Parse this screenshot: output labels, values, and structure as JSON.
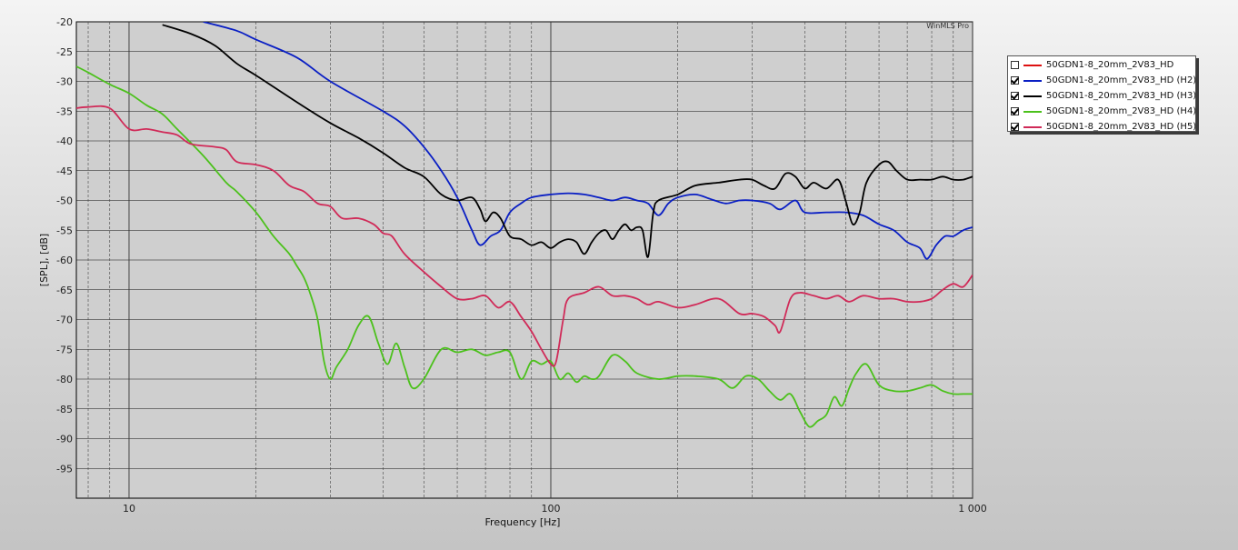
{
  "chart_data": {
    "type": "line",
    "xlabel": "Frequency [Hz]",
    "ylabel": "[SPL], [dB]",
    "x_scale": "log",
    "xlim": [
      7.5,
      1000
    ],
    "ylim": [
      -100,
      -20
    ],
    "grid": true,
    "legend_position": "right",
    "watermark": "WinMLS Pro",
    "y_ticks": [
      {
        "value": -20,
        "label": "-20"
      },
      {
        "value": -25,
        "label": "-25"
      },
      {
        "value": -30,
        "label": "-30"
      },
      {
        "value": -35,
        "label": "-35"
      },
      {
        "value": -40,
        "label": "-40"
      },
      {
        "value": -45,
        "label": "-45"
      },
      {
        "value": -50,
        "label": "-50"
      },
      {
        "value": -55,
        "label": "-55"
      },
      {
        "value": -60,
        "label": "-60"
      },
      {
        "value": -65,
        "label": "-65"
      },
      {
        "value": -70,
        "label": "-70"
      },
      {
        "value": -75,
        "label": "-75"
      },
      {
        "value": -80,
        "label": "-80"
      },
      {
        "value": -85,
        "label": "-85"
      },
      {
        "value": -90,
        "label": "-90"
      },
      {
        "value": -95,
        "label": "-95"
      }
    ],
    "x_ticks": [
      {
        "value": 10,
        "label": "10"
      },
      {
        "value": 100,
        "label": "100"
      },
      {
        "value": 1000,
        "label": "1 000"
      }
    ],
    "series": [
      {
        "name": "50GDN1-8_20mm_2V83_HD",
        "checked": false,
        "color": "#dd1111",
        "points": []
      },
      {
        "name": "50GDN1-8_20mm_2V83_HD (H2)",
        "checked": true,
        "color": "#0a1fc4",
        "points": [
          [
            15,
            -20
          ],
          [
            18,
            -21.5
          ],
          [
            20,
            -23
          ],
          [
            25,
            -26
          ],
          [
            30,
            -30
          ],
          [
            40,
            -35
          ],
          [
            45,
            -37.5
          ],
          [
            50,
            -41
          ],
          [
            55,
            -45
          ],
          [
            60,
            -49.5
          ],
          [
            65,
            -55
          ],
          [
            68,
            -57.5
          ],
          [
            72,
            -56
          ],
          [
            76,
            -55
          ],
          [
            80,
            -52
          ],
          [
            85,
            -50.5
          ],
          [
            90,
            -49.5
          ],
          [
            100,
            -49
          ],
          [
            110,
            -48.8
          ],
          [
            120,
            -49
          ],
          [
            130,
            -49.5
          ],
          [
            140,
            -50
          ],
          [
            150,
            -49.5
          ],
          [
            160,
            -50
          ],
          [
            170,
            -50.5
          ],
          [
            180,
            -52.5
          ],
          [
            190,
            -50.5
          ],
          [
            200,
            -49.5
          ],
          [
            220,
            -49
          ],
          [
            240,
            -49.8
          ],
          [
            260,
            -50.5
          ],
          [
            280,
            -50
          ],
          [
            300,
            -50
          ],
          [
            330,
            -50.5
          ],
          [
            350,
            -51.5
          ],
          [
            380,
            -50
          ],
          [
            400,
            -52
          ],
          [
            450,
            -52
          ],
          [
            500,
            -52
          ],
          [
            550,
            -52.5
          ],
          [
            600,
            -54
          ],
          [
            650,
            -55
          ],
          [
            700,
            -57
          ],
          [
            750,
            -58
          ],
          [
            780,
            -59.8
          ],
          [
            820,
            -57.5
          ],
          [
            860,
            -56
          ],
          [
            900,
            -56
          ],
          [
            950,
            -55
          ],
          [
            1000,
            -54.5
          ]
        ]
      },
      {
        "name": "50GDN1-8_20mm_2V83_HD (H3)",
        "checked": true,
        "color": "#000000",
        "points": [
          [
            12,
            -20.5
          ],
          [
            14,
            -22
          ],
          [
            16,
            -24
          ],
          [
            18,
            -27
          ],
          [
            20,
            -29
          ],
          [
            25,
            -33.5
          ],
          [
            30,
            -37
          ],
          [
            35,
            -39.5
          ],
          [
            40,
            -42
          ],
          [
            45,
            -44.5
          ],
          [
            50,
            -46
          ],
          [
            55,
            -49
          ],
          [
            60,
            -50
          ],
          [
            65,
            -49.5
          ],
          [
            68,
            -51.5
          ],
          [
            70,
            -53.5
          ],
          [
            73,
            -52
          ],
          [
            76,
            -53
          ],
          [
            80,
            -56
          ],
          [
            85,
            -56.5
          ],
          [
            90,
            -57.5
          ],
          [
            95,
            -57
          ],
          [
            100,
            -58
          ],
          [
            105,
            -57
          ],
          [
            110,
            -56.5
          ],
          [
            115,
            -57
          ],
          [
            120,
            -59
          ],
          [
            125,
            -57
          ],
          [
            130,
            -55.5
          ],
          [
            135,
            -55
          ],
          [
            140,
            -56.5
          ],
          [
            145,
            -55
          ],
          [
            150,
            -54
          ],
          [
            155,
            -55
          ],
          [
            160,
            -54.5
          ],
          [
            165,
            -55
          ],
          [
            170,
            -59.5
          ],
          [
            175,
            -52
          ],
          [
            180,
            -50
          ],
          [
            200,
            -49
          ],
          [
            220,
            -47.5
          ],
          [
            250,
            -47
          ],
          [
            280,
            -46.5
          ],
          [
            300,
            -46.5
          ],
          [
            320,
            -47.5
          ],
          [
            340,
            -48
          ],
          [
            360,
            -45.5
          ],
          [
            380,
            -46
          ],
          [
            400,
            -48
          ],
          [
            420,
            -47
          ],
          [
            450,
            -48
          ],
          [
            480,
            -46.5
          ],
          [
            500,
            -50
          ],
          [
            520,
            -54
          ],
          [
            540,
            -52
          ],
          [
            560,
            -47
          ],
          [
            600,
            -44
          ],
          [
            630,
            -43.5
          ],
          [
            660,
            -45
          ],
          [
            700,
            -46.5
          ],
          [
            750,
            -46.5
          ],
          [
            800,
            -46.5
          ],
          [
            850,
            -46
          ],
          [
            900,
            -46.5
          ],
          [
            950,
            -46.5
          ],
          [
            1000,
            -46
          ]
        ]
      },
      {
        "name": "50GDN1-8_20mm_2V83_HD (H4)",
        "checked": true,
        "color": "#4cc11c",
        "points": [
          [
            7.5,
            -27.5
          ],
          [
            8,
            -28.5
          ],
          [
            9,
            -30.5
          ],
          [
            10,
            -32
          ],
          [
            11,
            -34
          ],
          [
            12,
            -35.5
          ],
          [
            13,
            -38
          ],
          [
            15,
            -42.5
          ],
          [
            17,
            -47
          ],
          [
            18,
            -48.5
          ],
          [
            20,
            -52
          ],
          [
            22,
            -56
          ],
          [
            24,
            -59
          ],
          [
            25,
            -61
          ],
          [
            26,
            -63
          ],
          [
            27,
            -66
          ],
          [
            28,
            -70
          ],
          [
            29,
            -77
          ],
          [
            30,
            -80
          ],
          [
            31,
            -78
          ],
          [
            33,
            -75
          ],
          [
            35,
            -71
          ],
          [
            37,
            -69.5
          ],
          [
            39,
            -74
          ],
          [
            41,
            -77.5
          ],
          [
            43,
            -74
          ],
          [
            45,
            -78
          ],
          [
            47,
            -81.5
          ],
          [
            50,
            -80
          ],
          [
            55,
            -75
          ],
          [
            60,
            -75.5
          ],
          [
            65,
            -75
          ],
          [
            70,
            -76
          ],
          [
            75,
            -75.5
          ],
          [
            80,
            -75.5
          ],
          [
            85,
            -80
          ],
          [
            90,
            -77
          ],
          [
            95,
            -77.5
          ],
          [
            100,
            -77
          ],
          [
            105,
            -80
          ],
          [
            110,
            -79
          ],
          [
            115,
            -80.5
          ],
          [
            120,
            -79.5
          ],
          [
            125,
            -80
          ],
          [
            130,
            -79.5
          ],
          [
            140,
            -76
          ],
          [
            150,
            -77
          ],
          [
            160,
            -79
          ],
          [
            180,
            -80
          ],
          [
            200,
            -79.5
          ],
          [
            220,
            -79.5
          ],
          [
            250,
            -80
          ],
          [
            270,
            -81.5
          ],
          [
            290,
            -79.5
          ],
          [
            310,
            -80
          ],
          [
            330,
            -82
          ],
          [
            350,
            -83.5
          ],
          [
            370,
            -82.5
          ],
          [
            390,
            -85.5
          ],
          [
            410,
            -88
          ],
          [
            430,
            -87
          ],
          [
            450,
            -86
          ],
          [
            470,
            -83
          ],
          [
            490,
            -84.5
          ],
          [
            510,
            -81.5
          ],
          [
            530,
            -79
          ],
          [
            560,
            -77.5
          ],
          [
            600,
            -81
          ],
          [
            650,
            -82
          ],
          [
            700,
            -82
          ],
          [
            750,
            -81.5
          ],
          [
            800,
            -81
          ],
          [
            850,
            -82
          ],
          [
            900,
            -82.5
          ],
          [
            950,
            -82.5
          ],
          [
            1000,
            -82.5
          ]
        ]
      },
      {
        "name": "50GDN1-8_20mm_2V83_HD (H5)",
        "checked": true,
        "color": "#d02a58",
        "points": [
          [
            7.5,
            -34.5
          ],
          [
            8,
            -34.3
          ],
          [
            9,
            -34.5
          ],
          [
            10,
            -38
          ],
          [
            11,
            -38
          ],
          [
            12,
            -38.5
          ],
          [
            13,
            -39
          ],
          [
            14,
            -40.5
          ],
          [
            16,
            -41
          ],
          [
            17,
            -41.5
          ],
          [
            18,
            -43.5
          ],
          [
            20,
            -44
          ],
          [
            22,
            -45
          ],
          [
            24,
            -47.5
          ],
          [
            26,
            -48.5
          ],
          [
            28,
            -50.5
          ],
          [
            30,
            -51
          ],
          [
            32,
            -53
          ],
          [
            35,
            -53
          ],
          [
            38,
            -54
          ],
          [
            40,
            -55.5
          ],
          [
            42,
            -56
          ],
          [
            45,
            -59
          ],
          [
            50,
            -62
          ],
          [
            55,
            -64.5
          ],
          [
            60,
            -66.5
          ],
          [
            65,
            -66.5
          ],
          [
            70,
            -66
          ],
          [
            75,
            -68
          ],
          [
            80,
            -67
          ],
          [
            85,
            -69.5
          ],
          [
            90,
            -72
          ],
          [
            95,
            -75
          ],
          [
            100,
            -77.5
          ],
          [
            103,
            -77
          ],
          [
            107,
            -70
          ],
          [
            110,
            -66.5
          ],
          [
            120,
            -65.5
          ],
          [
            130,
            -64.5
          ],
          [
            140,
            -66
          ],
          [
            150,
            -66
          ],
          [
            160,
            -66.5
          ],
          [
            170,
            -67.5
          ],
          [
            180,
            -67
          ],
          [
            200,
            -68
          ],
          [
            220,
            -67.5
          ],
          [
            250,
            -66.5
          ],
          [
            280,
            -69
          ],
          [
            300,
            -69
          ],
          [
            320,
            -69.5
          ],
          [
            340,
            -71
          ],
          [
            350,
            -72
          ],
          [
            370,
            -66.5
          ],
          [
            390,
            -65.5
          ],
          [
            420,
            -66
          ],
          [
            450,
            -66.5
          ],
          [
            480,
            -66
          ],
          [
            510,
            -67
          ],
          [
            550,
            -66
          ],
          [
            600,
            -66.5
          ],
          [
            650,
            -66.5
          ],
          [
            700,
            -67
          ],
          [
            750,
            -67
          ],
          [
            800,
            -66.5
          ],
          [
            850,
            -65
          ],
          [
            900,
            -64
          ],
          [
            950,
            -64.5
          ],
          [
            1000,
            -62.5
          ]
        ]
      }
    ]
  }
}
